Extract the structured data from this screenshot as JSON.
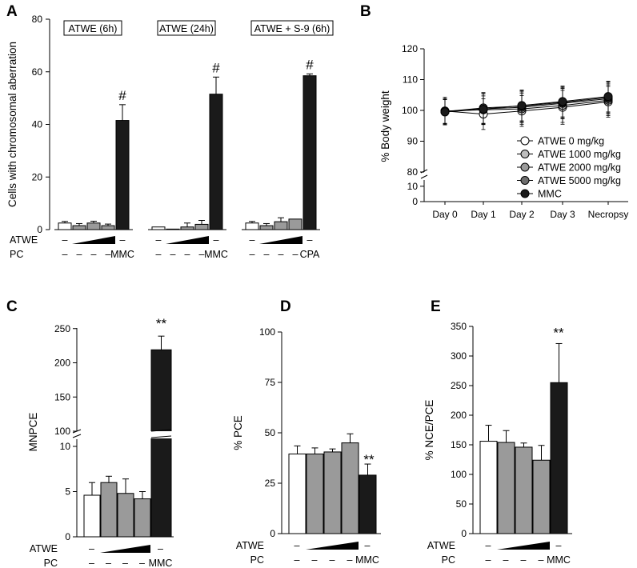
{
  "figure": {
    "colors": {
      "white_bar": "#ffffff",
      "light_gray": "#bdbdbd",
      "mid_gray": "#9a9a9a",
      "dark_gray": "#6e6e6e",
      "black": "#1a1a1a",
      "edge": "#000000"
    }
  },
  "chart_data": [
    {
      "panel": "A",
      "type": "bar",
      "ylabel": "Cells with chromosomal aberration",
      "ylim": [
        0,
        80
      ],
      "yticks": [
        0,
        20,
        40,
        60,
        80
      ],
      "groups": [
        {
          "title": "ATWE (6h)",
          "values": [
            2.5,
            1.5,
            2.5,
            1.5,
            41.5
          ],
          "errors": [
            0.6,
            0.8,
            0.7,
            0.6,
            6.0
          ],
          "colors": [
            "white_bar",
            "mid_gray",
            "mid_gray",
            "mid_gray",
            "black"
          ],
          "significance": "#",
          "pc_labels": [
            "–",
            "–",
            "–",
            "–",
            "MMC"
          ]
        },
        {
          "title": "ATWE (24h)",
          "values": [
            1.0,
            0.2,
            1.0,
            2.0,
            51.5
          ],
          "errors": [
            0.0,
            0.0,
            1.5,
            1.5,
            6.5
          ],
          "colors": [
            "white_bar",
            "mid_gray",
            "mid_gray",
            "mid_gray",
            "black"
          ],
          "significance": "#",
          "pc_labels": [
            "–",
            "–",
            "–",
            "–",
            "MMC"
          ]
        },
        {
          "title": "ATWE + S-9 (6h)",
          "values": [
            2.5,
            1.5,
            3.0,
            4.0,
            58.5
          ],
          "errors": [
            0.6,
            0.8,
            1.5,
            0.0,
            0.7
          ],
          "colors": [
            "white_bar",
            "mid_gray",
            "mid_gray",
            "mid_gray",
            "black"
          ],
          "significance": "#",
          "pc_labels": [
            "–",
            "–",
            "–",
            "–",
            "CPA"
          ]
        }
      ],
      "row_labels": [
        "ATWE",
        "PC"
      ],
      "atwe_labels": [
        "–",
        "–"
      ]
    },
    {
      "panel": "B",
      "type": "line",
      "ylabel": "% Body weight",
      "categories": [
        "Day 0",
        "Day 1",
        "Day 2",
        "Day 3",
        "Necropsy"
      ],
      "yticks_upper": [
        80,
        90,
        100,
        110,
        120
      ],
      "yticks_lower": [
        0,
        10
      ],
      "series": [
        {
          "name": "ATWE 0 mg/kg",
          "color": "white_bar",
          "values": [
            99.8,
            98.8,
            99.8,
            101.0,
            102.8
          ],
          "errors": [
            4.5,
            5.0,
            5.0,
            5.5,
            5.0
          ]
        },
        {
          "name": "ATWE 1000 mg/kg",
          "color": "light_gray",
          "values": [
            99.8,
            100.2,
            100.5,
            101.6,
            103.3
          ],
          "errors": [
            4.0,
            4.5,
            5.0,
            5.5,
            5.0
          ]
        },
        {
          "name": "ATWE 2000 mg/kg",
          "color": "mid_gray",
          "values": [
            99.6,
            100.5,
            101.0,
            102.3,
            103.8
          ],
          "errors": [
            4.0,
            5.0,
            5.0,
            5.0,
            5.0
          ]
        },
        {
          "name": "ATWE 5000 mg/kg",
          "color": "dark_gray",
          "values": [
            99.6,
            100.8,
            101.4,
            102.6,
            104.2
          ],
          "errors": [
            4.0,
            5.0,
            5.0,
            5.0,
            5.0
          ]
        },
        {
          "name": "MMC",
          "color": "black",
          "values": [
            99.5,
            100.4,
            101.6,
            102.9,
            104.5
          ],
          "errors": [
            4.0,
            5.0,
            5.0,
            5.0,
            5.0
          ]
        }
      ]
    },
    {
      "panel": "C",
      "type": "bar",
      "ylabel": "MNPCE",
      "yticks_lower": [
        0,
        5,
        10
      ],
      "yticks_upper": [
        100,
        150,
        200,
        250
      ],
      "values": [
        4.6,
        6.0,
        4.8,
        4.2,
        219
      ],
      "errors": [
        1.4,
        0.7,
        1.6,
        0.8,
        20
      ],
      "colors": [
        "white_bar",
        "mid_gray",
        "mid_gray",
        "mid_gray",
        "black"
      ],
      "significance": "**",
      "row_labels": [
        "ATWE",
        "PC"
      ],
      "atwe_labels": [
        "–",
        "–"
      ],
      "pc_labels": [
        "–",
        "–",
        "–",
        "–",
        "MMC"
      ]
    },
    {
      "panel": "D",
      "type": "bar",
      "ylabel": "% PCE",
      "ylim": [
        0,
        100
      ],
      "yticks": [
        0,
        25,
        50,
        75,
        100
      ],
      "values": [
        39.5,
        39.5,
        40.5,
        45.0,
        29.0
      ],
      "errors": [
        4.0,
        3.0,
        1.5,
        4.5,
        5.5
      ],
      "colors": [
        "white_bar",
        "mid_gray",
        "mid_gray",
        "mid_gray",
        "black"
      ],
      "significance": "**",
      "row_labels": [
        "ATWE",
        "PC"
      ],
      "atwe_labels": [
        "–",
        "–"
      ],
      "pc_labels": [
        "–",
        "–",
        "–",
        "–",
        "MMC"
      ]
    },
    {
      "panel": "E",
      "type": "bar",
      "ylabel": "% NCE/PCE",
      "ylim": [
        0,
        350
      ],
      "yticks": [
        0,
        50,
        100,
        150,
        200,
        250,
        300,
        350
      ],
      "values": [
        156,
        154,
        146,
        124,
        255
      ],
      "errors": [
        27,
        20,
        7,
        25,
        66
      ],
      "colors": [
        "white_bar",
        "mid_gray",
        "mid_gray",
        "mid_gray",
        "black"
      ],
      "significance": "**",
      "row_labels": [
        "ATWE",
        "PC"
      ],
      "atwe_labels": [
        "–",
        "–"
      ],
      "pc_labels": [
        "–",
        "–",
        "–",
        "–",
        "MMC"
      ]
    }
  ]
}
